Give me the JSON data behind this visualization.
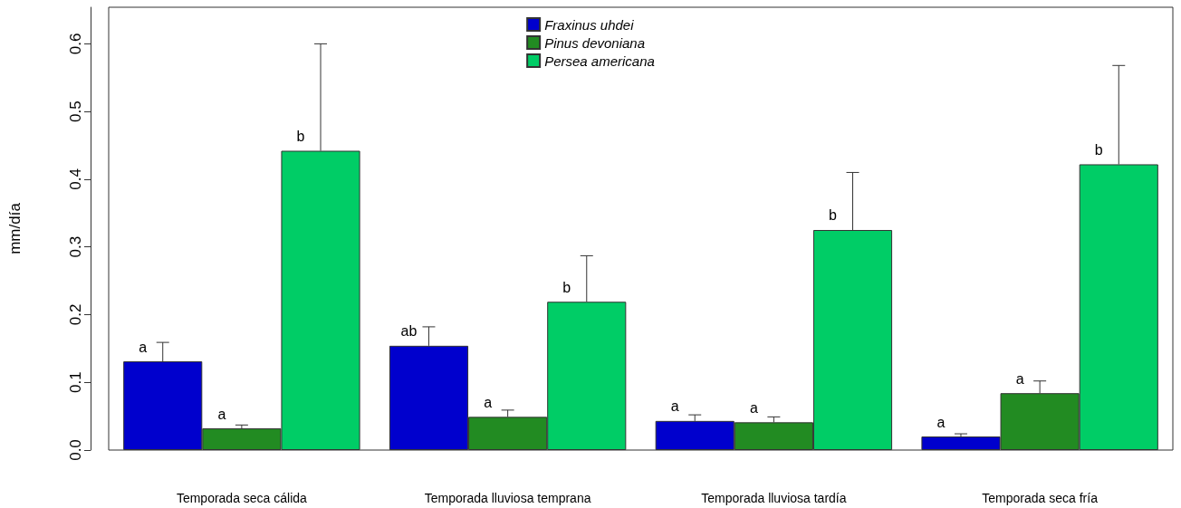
{
  "chart_data": {
    "type": "bar",
    "ylabel": "mm/día",
    "categories": [
      "Temporada seca cálida",
      "Temporada lluviosa temprana",
      "Temporada lluviosa tardía",
      "Temporada seca fría"
    ],
    "series": [
      {
        "name": "Fraxinus uhdei",
        "color": "#0000cd",
        "values": [
          0.131,
          0.154,
          0.043,
          0.02
        ],
        "errors": [
          [
            0.131,
            0.159
          ],
          [
            0.154,
            0.182
          ],
          [
            0.043,
            0.052
          ],
          [
            0.02,
            0.024
          ]
        ],
        "value_labels": [
          "a",
          "ab",
          "a",
          "a"
        ]
      },
      {
        "name": "Pinus devoniana",
        "color": "#228b22",
        "values": [
          0.032,
          0.049,
          0.041,
          0.084
        ],
        "errors": [
          [
            0.032,
            0.037
          ],
          [
            0.049,
            0.059
          ],
          [
            0.041,
            0.049
          ],
          [
            0.084,
            0.102
          ]
        ],
        "value_labels": [
          "a",
          "a",
          "a",
          "a"
        ]
      },
      {
        "name": "Persea americana",
        "color": "#00cd66",
        "values": [
          0.442,
          0.219,
          0.325,
          0.422
        ],
        "errors": [
          [
            0.442,
            0.6
          ],
          [
            0.219,
            0.287
          ],
          [
            0.325,
            0.41
          ],
          [
            0.422,
            0.568
          ]
        ],
        "value_labels": [
          "b",
          "b",
          "b",
          "b"
        ]
      }
    ],
    "ylim": [
      0,
      0.654
    ],
    "yticks": [
      {
        "value": 0,
        "label": "0.0"
      },
      {
        "value": 0.1,
        "label": "0.1"
      },
      {
        "value": 0.2,
        "label": "0.2"
      },
      {
        "value": 0.3,
        "label": "0.3"
      },
      {
        "value": 0.4,
        "label": "0.4"
      },
      {
        "value": 0.5,
        "label": "0.5"
      },
      {
        "value": 0.6,
        "label": "0.6"
      }
    ],
    "grid": false,
    "legend": "top"
  }
}
